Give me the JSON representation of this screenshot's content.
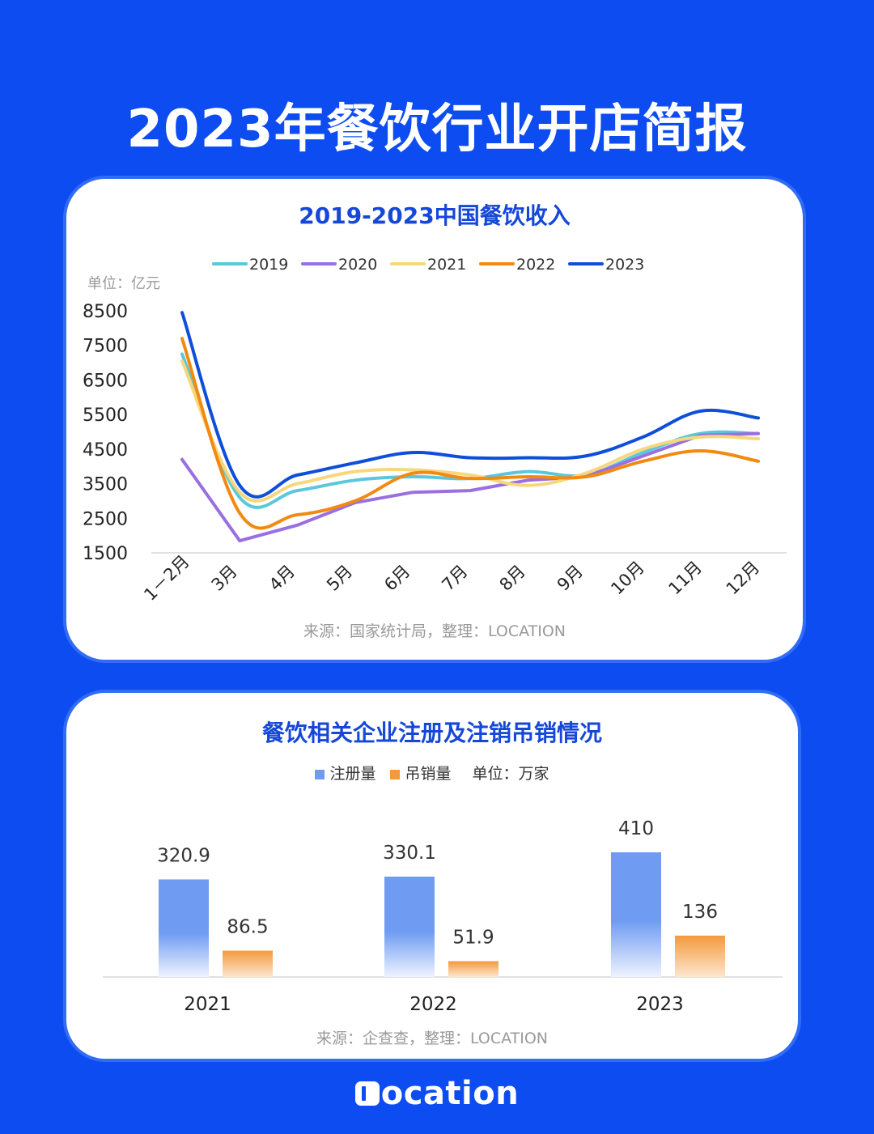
{
  "main_title": "2023年餐饮行业开店简报",
  "chart1": {
    "title": "2019-2023中国餐饮收入",
    "unit": "单位：亿元",
    "source": "来源：国家统计局，整理：LOCATION"
  },
  "chart2": {
    "title": "餐饮相关企业注册及注销吊销情况",
    "legend_registered": "注册量",
    "legend_revoked": "吊销量",
    "unit": "单位：万家",
    "source": "来源：企查查，整理：LOCATION"
  },
  "logo_text": "ocation",
  "colors": {
    "background": "#0d4cf0",
    "title_blue": "#1547d8",
    "s2019": "#5bc7dd",
    "s2020": "#9a6fe0",
    "s2021": "#f6d77a",
    "s2022": "#f28a12",
    "s2023": "#0f4fd8",
    "bar_registered": "#6f9cf2",
    "bar_revoked": "#f39a3c"
  },
  "chart_data": [
    {
      "type": "line",
      "title": "2019-2023中国餐饮收入",
      "ylabel": "单位：亿元",
      "ylim": [
        1500,
        8500
      ],
      "yticks": [
        8500,
        7500,
        6500,
        5500,
        4500,
        3500,
        2500,
        1500
      ],
      "categories": [
        "1－2月",
        "3月",
        "4月",
        "5月",
        "6月",
        "7月",
        "8月",
        "9月",
        "10月",
        "11月",
        "12月"
      ],
      "legend": "top",
      "series": [
        {
          "name": "2019",
          "values": [
            7250,
            3100,
            3300,
            3600,
            3700,
            3650,
            3850,
            3750,
            4400,
            4950,
            4950
          ]
        },
        {
          "name": "2020",
          "values": [
            4200,
            1850,
            2300,
            2950,
            3250,
            3300,
            3600,
            3700,
            4300,
            4900,
            4950
          ]
        },
        {
          "name": "2021",
          "values": [
            7050,
            3250,
            3500,
            3850,
            3900,
            3750,
            3450,
            3800,
            4500,
            4850,
            4800
          ]
        },
        {
          "name": "2022",
          "values": [
            7700,
            2650,
            2600,
            3000,
            3800,
            3650,
            3700,
            3700,
            4150,
            4450,
            4150
          ]
        },
        {
          "name": "2023",
          "values": [
            8450,
            3450,
            3750,
            4100,
            4400,
            4250,
            4250,
            4300,
            4850,
            5600,
            5400
          ]
        }
      ]
    },
    {
      "type": "bar",
      "title": "餐饮相关企业注册及注销吊销情况",
      "ylabel": "单位：万家",
      "categories": [
        "2021",
        "2022",
        "2023"
      ],
      "series": [
        {
          "name": "注册量",
          "values": [
            320.9,
            330.1,
            410
          ]
        },
        {
          "name": "吊销量",
          "values": [
            86.5,
            51.9,
            136
          ]
        }
      ],
      "labels": [
        [
          "320.9",
          "330.1",
          "410"
        ],
        [
          "86.5",
          "51.9",
          "136"
        ]
      ]
    }
  ]
}
